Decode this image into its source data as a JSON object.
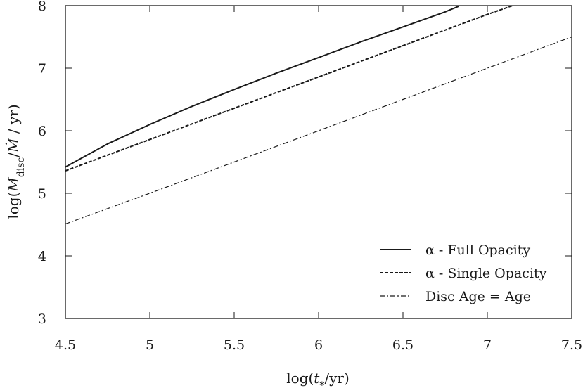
{
  "chart_data": {
    "type": "line",
    "xlabel": "log(t*/yr)",
    "ylabel": "log(Mdisc/Ṁ / yr)",
    "xlim": [
      4.5,
      7.5
    ],
    "ylim": [
      3,
      8
    ],
    "xticks": [
      4.5,
      5,
      5.5,
      6,
      6.5,
      7,
      7.5
    ],
    "xtick_labels": [
      "4.5",
      "5",
      "5.5",
      "6",
      "6.5",
      "7",
      "7.5"
    ],
    "yticks": [
      3,
      4,
      5,
      6,
      7,
      8
    ],
    "ytick_labels": [
      "3",
      "4",
      "5",
      "6",
      "7",
      "8"
    ],
    "grid": false,
    "legend_position": "bottom-right",
    "series": [
      {
        "name": "α - Full Opacity",
        "style": "solid",
        "x": [
          4.5,
          4.75,
          5.0,
          5.25,
          5.5,
          5.75,
          6.0,
          6.25,
          6.5,
          6.75,
          6.83
        ],
        "y": [
          5.42,
          5.79,
          6.1,
          6.39,
          6.66,
          6.92,
          7.17,
          7.42,
          7.66,
          7.9,
          7.99
        ]
      },
      {
        "name": "α - Single Opacity",
        "style": "dashed",
        "x": [
          4.5,
          5.0,
          5.5,
          6.0,
          6.5,
          7.0,
          7.15
        ],
        "y": [
          5.36,
          5.86,
          6.36,
          6.86,
          7.36,
          7.86,
          8.0
        ]
      },
      {
        "name": "Disc Age = Age",
        "style": "dashdot",
        "x": [
          4.5,
          5.0,
          5.5,
          6.0,
          6.5,
          7.0,
          7.5
        ],
        "y": [
          4.51,
          5.0,
          5.5,
          6.0,
          6.5,
          7.0,
          7.5
        ]
      }
    ]
  }
}
